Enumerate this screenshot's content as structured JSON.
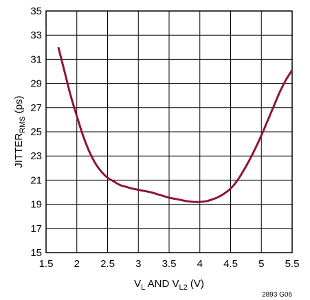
{
  "chart_data": {
    "type": "line",
    "xlabel": {
      "main": "V",
      "sub1": "L",
      "mid": " AND V",
      "sub2": "L2",
      "tail": " (V)"
    },
    "ylabel": {
      "main": "JITTER",
      "sub": "RMS",
      "tail": " (ps)"
    },
    "xlim": [
      1.5,
      5.5
    ],
    "ylim": [
      15,
      35
    ],
    "xticks": [
      "1.5",
      "2",
      "2.5",
      "3",
      "3.5",
      "4",
      "4.5",
      "5",
      "5.5"
    ],
    "yticks": [
      "15",
      "17",
      "19",
      "21",
      "23",
      "25",
      "27",
      "29",
      "31",
      "33",
      "35"
    ],
    "grid": true,
    "series": [
      {
        "color": "#8b1538",
        "points": [
          [
            1.7,
            32.0
          ],
          [
            1.8,
            30.0
          ],
          [
            1.9,
            28.0
          ],
          [
            2.0,
            26.3
          ],
          [
            2.1,
            24.7
          ],
          [
            2.2,
            23.4
          ],
          [
            2.3,
            22.4
          ],
          [
            2.4,
            21.7
          ],
          [
            2.5,
            21.2
          ],
          [
            2.6,
            20.9
          ],
          [
            2.7,
            20.6
          ],
          [
            2.8,
            20.45
          ],
          [
            2.9,
            20.3
          ],
          [
            3.0,
            20.2
          ],
          [
            3.1,
            20.1
          ],
          [
            3.2,
            20.0
          ],
          [
            3.3,
            19.85
          ],
          [
            3.4,
            19.7
          ],
          [
            3.5,
            19.55
          ],
          [
            3.6,
            19.45
          ],
          [
            3.7,
            19.35
          ],
          [
            3.8,
            19.25
          ],
          [
            3.9,
            19.2
          ],
          [
            4.0,
            19.2
          ],
          [
            4.1,
            19.25
          ],
          [
            4.2,
            19.4
          ],
          [
            4.3,
            19.6
          ],
          [
            4.4,
            19.9
          ],
          [
            4.5,
            20.3
          ],
          [
            4.6,
            20.9
          ],
          [
            4.7,
            21.7
          ],
          [
            4.8,
            22.6
          ],
          [
            4.9,
            23.6
          ],
          [
            5.0,
            24.7
          ],
          [
            5.1,
            25.9
          ],
          [
            5.2,
            27.1
          ],
          [
            5.3,
            28.3
          ],
          [
            5.4,
            29.3
          ],
          [
            5.5,
            30.1
          ]
        ]
      }
    ],
    "note": "2893 G06"
  }
}
